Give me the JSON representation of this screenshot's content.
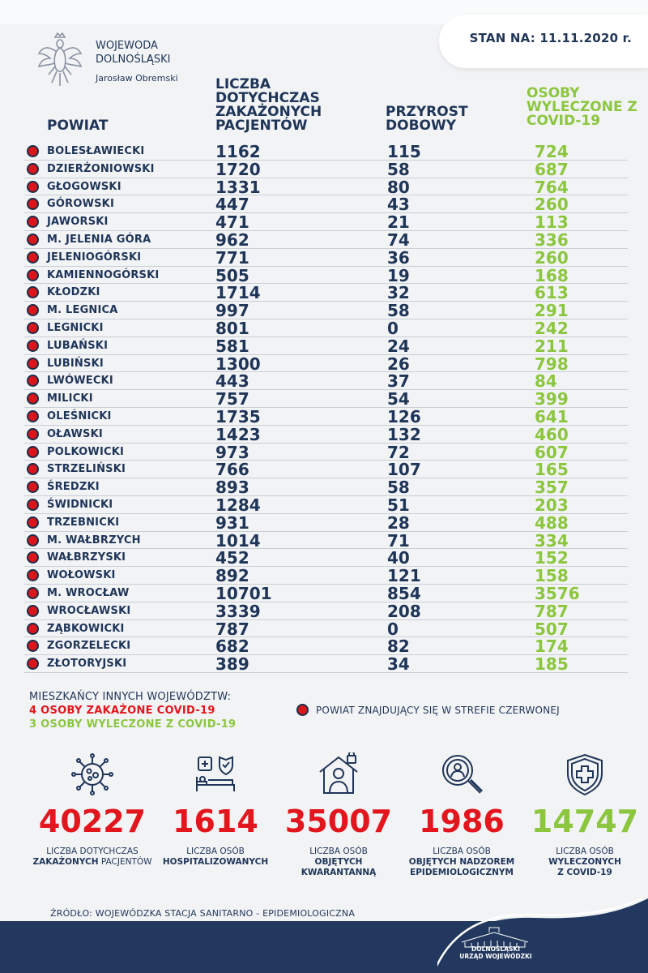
{
  "header": {
    "office_line1": "WOJEWODA",
    "office_line2": "DOLNOŚLĄSKI",
    "person": "Jarosław Obremski",
    "date": "STAN NA: 11.11.2020 r."
  },
  "columns": {
    "powiat": "POWIAT",
    "cases": "LICZBA DOTYCHCZAS ZAKAŻONYCH PACJENTÓW",
    "growth": "PRZYROST DOBOWY",
    "recovered": "OSOBY WYLECZONE Z COVID-19"
  },
  "rows": [
    {
      "name": "BOLESŁAWIECKI",
      "cases": "1162",
      "growth": "115",
      "recovered": "724"
    },
    {
      "name": "DZIERŻONIOWSKI",
      "cases": "1720",
      "growth": "58",
      "recovered": "687"
    },
    {
      "name": "GŁOGOWSKI",
      "cases": "1331",
      "growth": "80",
      "recovered": "764"
    },
    {
      "name": "GÓROWSKI",
      "cases": "447",
      "growth": "43",
      "recovered": "260"
    },
    {
      "name": "JAWORSKI",
      "cases": "471",
      "growth": "21",
      "recovered": "113"
    },
    {
      "name": "M. JELENIA GÓRA",
      "cases": "962",
      "growth": "74",
      "recovered": "336"
    },
    {
      "name": "JELENIOGÓRSKI",
      "cases": "771",
      "growth": "36",
      "recovered": "260"
    },
    {
      "name": "KAMIENNOGÓRSKI",
      "cases": "505",
      "growth": "19",
      "recovered": "168"
    },
    {
      "name": "KŁODZKI",
      "cases": "1714",
      "growth": "32",
      "recovered": "613"
    },
    {
      "name": "M. LEGNICA",
      "cases": "997",
      "growth": "58",
      "recovered": "291"
    },
    {
      "name": "LEGNICKI",
      "cases": "801",
      "growth": "0",
      "recovered": "242"
    },
    {
      "name": "LUBAŃSKI",
      "cases": "581",
      "growth": "24",
      "recovered": "211"
    },
    {
      "name": "LUBIŃSKI",
      "cases": "1300",
      "growth": "26",
      "recovered": "798"
    },
    {
      "name": "LWÓWECKI",
      "cases": "443",
      "growth": "37",
      "recovered": "84"
    },
    {
      "name": "MILICKI",
      "cases": "757",
      "growth": "54",
      "recovered": "399"
    },
    {
      "name": "OLEŚNICKI",
      "cases": "1735",
      "growth": "126",
      "recovered": "641"
    },
    {
      "name": "OŁAWSKI",
      "cases": "1423",
      "growth": "132",
      "recovered": "460"
    },
    {
      "name": "POLKOWICKI",
      "cases": "973",
      "growth": "72",
      "recovered": "607"
    },
    {
      "name": "STRZELIŃSKI",
      "cases": "766",
      "growth": "107",
      "recovered": "165"
    },
    {
      "name": "ŚREDZKI",
      "cases": "893",
      "growth": "58",
      "recovered": "357"
    },
    {
      "name": "ŚWIDNICKI",
      "cases": "1284",
      "growth": "51",
      "recovered": "203"
    },
    {
      "name": "TRZEBNICKI",
      "cases": "931",
      "growth": "28",
      "recovered": "488"
    },
    {
      "name": "M. WAŁBRZYCH",
      "cases": "1014",
      "growth": "71",
      "recovered": "334"
    },
    {
      "name": "WAŁBRZYSKI",
      "cases": "452",
      "growth": "40",
      "recovered": "152"
    },
    {
      "name": "WOŁOWSKI",
      "cases": "892",
      "growth": "121",
      "recovered": "158"
    },
    {
      "name": "M. WROCŁAW",
      "cases": "10701",
      "growth": "854",
      "recovered": "3576"
    },
    {
      "name": "WROCŁAWSKI",
      "cases": "3339",
      "growth": "208",
      "recovered": "787"
    },
    {
      "name": "ZĄBKOWICKI",
      "cases": "787",
      "growth": "0",
      "recovered": "507"
    },
    {
      "name": "ZGORZELECKI",
      "cases": "682",
      "growth": "82",
      "recovered": "174"
    },
    {
      "name": "ZŁOTORYJSKI",
      "cases": "389",
      "growth": "34",
      "recovered": "185"
    }
  ],
  "notes": {
    "heading": "MIESZKAŃCY INNYCH WOJEWÓDZTW:",
    "infected": "4 OSOBY ZAKAŻONE COVID-19",
    "recovered": "3 OSOBY WYLECZONE Z COVID-19",
    "legend": "POWIAT ZNAJDUJĄCY SIĘ W STREFIE CZERWONEJ"
  },
  "stats": [
    {
      "value": "40227",
      "label1": "LICZBA DOTYCHCZAS",
      "label2_bold": "ZAKAŻONYCH",
      "label2_rest": " PACJENTÓW",
      "label3": "",
      "icon": "virus-icon"
    },
    {
      "value": "1614",
      "label1": "LICZBA OSÓB",
      "label2_bold": "HOSPITALIZOWANYCH",
      "label2_rest": "",
      "label3": "",
      "icon": "hospital-bed-icon"
    },
    {
      "value": "35007",
      "label1": "LICZBA OSÓB",
      "label2_bold": "OBJĘTYCH",
      "label2_rest": "",
      "label3": "KWARANTANNĄ",
      "icon": "quarantine-home-icon"
    },
    {
      "value": "1986",
      "label1": "LICZBA OSÓB",
      "label2_bold": "OBJĘTYCH NADZOREM",
      "label2_rest": "",
      "label3": "EPIDEMIOLOGICZNYM",
      "icon": "magnifier-person-icon"
    },
    {
      "value": "14747",
      "label1": "LICZBA OSÓB",
      "label2_bold": "WYLECZONYCH",
      "label2_rest": "",
      "label3": "Z COVID-19",
      "icon": "shield-cross-icon"
    }
  ],
  "source": "ŹRÓDŁO: WOJEWÓDZKA STACJA SANITARNO - EPIDEMIOLOGICZNA",
  "footer": {
    "line1": "DOLNOŚLĄSKI",
    "line2": "URZĄD WOJEWÓDZKI"
  },
  "colors": {
    "navy": "#1f3558",
    "red": "#e2161c",
    "green": "#8cc63f",
    "footer": "#22385e"
  }
}
